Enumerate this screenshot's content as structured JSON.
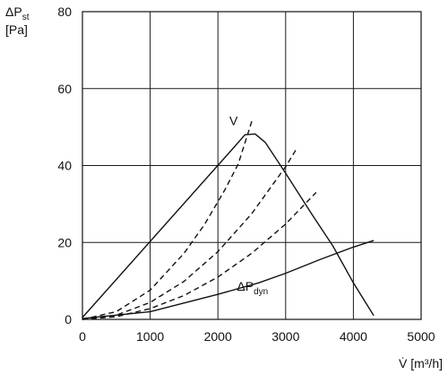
{
  "chart_data": {
    "type": "line",
    "xlabel": "V̇ [m³/h]",
    "ylabel": {
      "main": "ΔP",
      "sub": "st",
      "unit": "[Pa]"
    },
    "xlim": [
      0,
      5000
    ],
    "ylim": [
      0,
      80
    ],
    "xticks": [
      0,
      1000,
      2000,
      3000,
      4000,
      5000
    ],
    "yticks": [
      0,
      20,
      40,
      60,
      80
    ],
    "grid": true,
    "colors": {
      "line": "#111111",
      "grid": "#1a1a1a"
    },
    "series": [
      {
        "style": "solid",
        "x": [
          0,
          2250,
          2400,
          2550,
          2700,
          3000,
          3400,
          3700,
          4000,
          4300
        ],
        "y": [
          0.5,
          45,
          48,
          48.2,
          46,
          38,
          27,
          19,
          9.5,
          1
        ]
      },
      {
        "style": "dashed",
        "x": [
          0,
          500,
          1000,
          1500,
          1800,
          2100,
          2300,
          2500
        ],
        "y": [
          0,
          2,
          7.6,
          17.2,
          24.6,
          33.6,
          40.4,
          51.5
        ]
      },
      {
        "style": "dashed",
        "x": [
          0,
          500,
          1000,
          1500,
          2000,
          2500,
          3000,
          3150
        ],
        "y": [
          0,
          1.1,
          4.4,
          9.9,
          17.6,
          27.5,
          39.7,
          44
        ]
      },
      {
        "style": "dashed",
        "x": [
          0,
          500,
          1000,
          1500,
          2000,
          2500,
          3000,
          3450
        ],
        "y": [
          0,
          0.7,
          2.8,
          6.2,
          11,
          17.2,
          24.8,
          33
        ]
      },
      {
        "style": "solid",
        "x": [
          0,
          1000,
          2000,
          2600,
          3000,
          3500,
          4000,
          4300
        ],
        "y": [
          0.2,
          2,
          6.5,
          9.5,
          12,
          15.5,
          18.8,
          20.5
        ]
      }
    ],
    "annotations": [
      {
        "text": "V",
        "x": 2170,
        "y": 50.5
      },
      {
        "text": "ΔP",
        "sub": "dyn",
        "x": 2280,
        "y": 7.5
      }
    ]
  }
}
